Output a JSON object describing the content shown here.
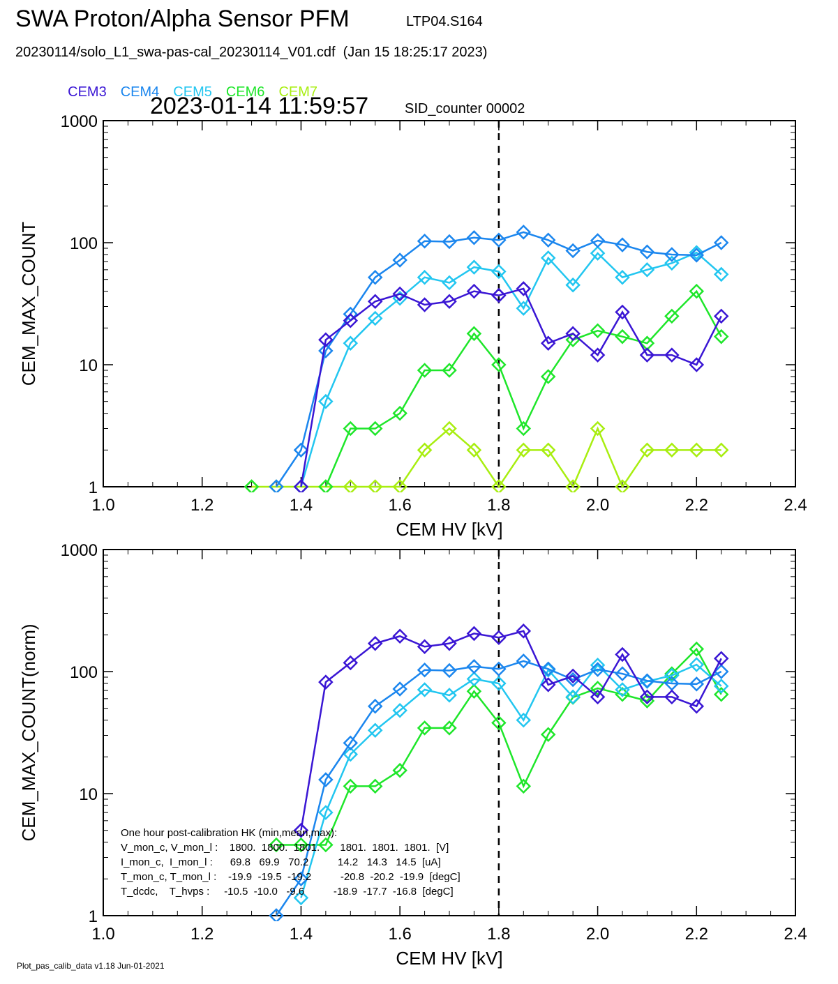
{
  "header": {
    "title": "SWA Proton/Alpha Sensor PFM",
    "subtitle": "LTP04.S164",
    "file_line": "20230114/solo_L1_swa-pas-cal_20230114_V01.cdf  (Jan 15 18:25:17 2023)",
    "timestamp": "2023-01-14 11:59:57",
    "sid_counter": "SID_counter 00002"
  },
  "legend": [
    {
      "name": "CEM3",
      "color": "#3a16d4"
    },
    {
      "name": "CEM4",
      "color": "#1b86ee"
    },
    {
      "name": "CEM5",
      "color": "#22c6f0"
    },
    {
      "name": "CEM6",
      "color": "#1ee62a"
    },
    {
      "name": "CEM7",
      "color": "#a8ee10"
    }
  ],
  "footer": "Plot_pas_calib_data v1.18 Jun-01-2021",
  "hk_note": {
    "lines": [
      "One hour post-calibration HK (min,mean,max):",
      "V_mon_c, V_mon_l :    1800.  1800.  1801.       1801.  1801.  1801.  [V]",
      "I_mon_c,  I_mon_l :      69.8   69.9   70.2          14.2   14.3   14.5  [uA]",
      "T_mon_c, T_mon_l :    -19.9  -19.5  -19.2          -20.8  -20.2  -19.9  [degC]",
      "T_dcdc,    T_hvps :     -10.5  -10.0   -9.6          -18.9  -17.7  -16.8  [degC]"
    ]
  },
  "chart_data": [
    {
      "type": "line",
      "xlabel": "CEM HV [kV]",
      "ylabel": "CEM_MAX_COUNT",
      "xlim": [
        1.0,
        2.4
      ],
      "ylim": [
        1,
        1000
      ],
      "yscale": "log",
      "x_ticks": [
        "1.0",
        "1.2",
        "1.4",
        "1.6",
        "1.8",
        "2.0",
        "2.2",
        "2.4"
      ],
      "y_ticks": [
        "1",
        "10",
        "100",
        "1000"
      ],
      "vline_x": 1.8,
      "x": [
        1.3,
        1.35,
        1.4,
        1.45,
        1.5,
        1.55,
        1.6,
        1.65,
        1.7,
        1.75,
        1.8,
        1.85,
        1.9,
        1.95,
        2.0,
        2.05,
        2.1,
        2.15,
        2.2,
        2.25
      ],
      "series": [
        {
          "name": "CEM3",
          "values": [
            null,
            null,
            1,
            16,
            23,
            33,
            38,
            31,
            33,
            40,
            37,
            42,
            15,
            18,
            12,
            27,
            12,
            12,
            10,
            25
          ]
        },
        {
          "name": "CEM4",
          "values": [
            null,
            1,
            2,
            13,
            26,
            52,
            72,
            103,
            102,
            110,
            105,
            122,
            105,
            86,
            104,
            96,
            84,
            80,
            79,
            100
          ]
        },
        {
          "name": "CEM5",
          "values": [
            null,
            null,
            1,
            5,
            15,
            24,
            35,
            52,
            47,
            63,
            58,
            29,
            75,
            45,
            82,
            52,
            60,
            68,
            83,
            55
          ]
        },
        {
          "name": "CEM6",
          "values": [
            1,
            null,
            null,
            1,
            3,
            3,
            4,
            9,
            9,
            18,
            10,
            3,
            8,
            16,
            19,
            17,
            15,
            25,
            40,
            17
          ]
        },
        {
          "name": "CEM7",
          "values": [
            1,
            1,
            1,
            1,
            1,
            1,
            1,
            2,
            3,
            2,
            1,
            2,
            2,
            1,
            3,
            1,
            2,
            2,
            2,
            2
          ]
        }
      ]
    },
    {
      "type": "line",
      "xlabel": "CEM HV [kV]",
      "ylabel": "CEM_MAX_COUNT(norm)",
      "xlim": [
        1.0,
        2.4
      ],
      "ylim": [
        1,
        1000
      ],
      "yscale": "log",
      "x_ticks": [
        "1.0",
        "1.2",
        "1.4",
        "1.6",
        "1.8",
        "2.0",
        "2.2",
        "2.4"
      ],
      "y_ticks": [
        "1",
        "10",
        "100",
        "1000"
      ],
      "vline_x": 1.8,
      "x": [
        1.3,
        1.35,
        1.4,
        1.45,
        1.5,
        1.55,
        1.6,
        1.65,
        1.7,
        1.75,
        1.8,
        1.85,
        1.9,
        1.95,
        2.0,
        2.05,
        2.1,
        2.15,
        2.2,
        2.25
      ],
      "series": [
        {
          "name": "CEM3",
          "values": [
            null,
            null,
            5,
            82,
            118,
            170,
            195,
            160,
            170,
            205,
            190,
            215,
            78,
            92,
            62,
            138,
            62,
            62,
            52,
            128
          ]
        },
        {
          "name": "CEM4",
          "values": [
            null,
            1,
            2,
            13,
            26,
            52,
            72,
            103,
            102,
            110,
            105,
            122,
            105,
            86,
            104,
            96,
            84,
            80,
            79,
            100
          ]
        },
        {
          "name": "CEM5",
          "values": [
            null,
            null,
            1.4,
            7,
            21,
            33,
            48,
            71,
            64,
            87,
            80,
            40,
            103,
            62,
            113,
            71,
            83,
            93,
            114,
            76
          ]
        },
        {
          "name": "CEM6",
          "values": [
            null,
            3.8,
            3.8,
            3.8,
            11.5,
            11.5,
            15.5,
            34.5,
            34.5,
            69,
            38,
            11.5,
            30.5,
            61.5,
            73,
            65,
            57.5,
            96,
            153,
            65
          ]
        }
      ]
    }
  ]
}
